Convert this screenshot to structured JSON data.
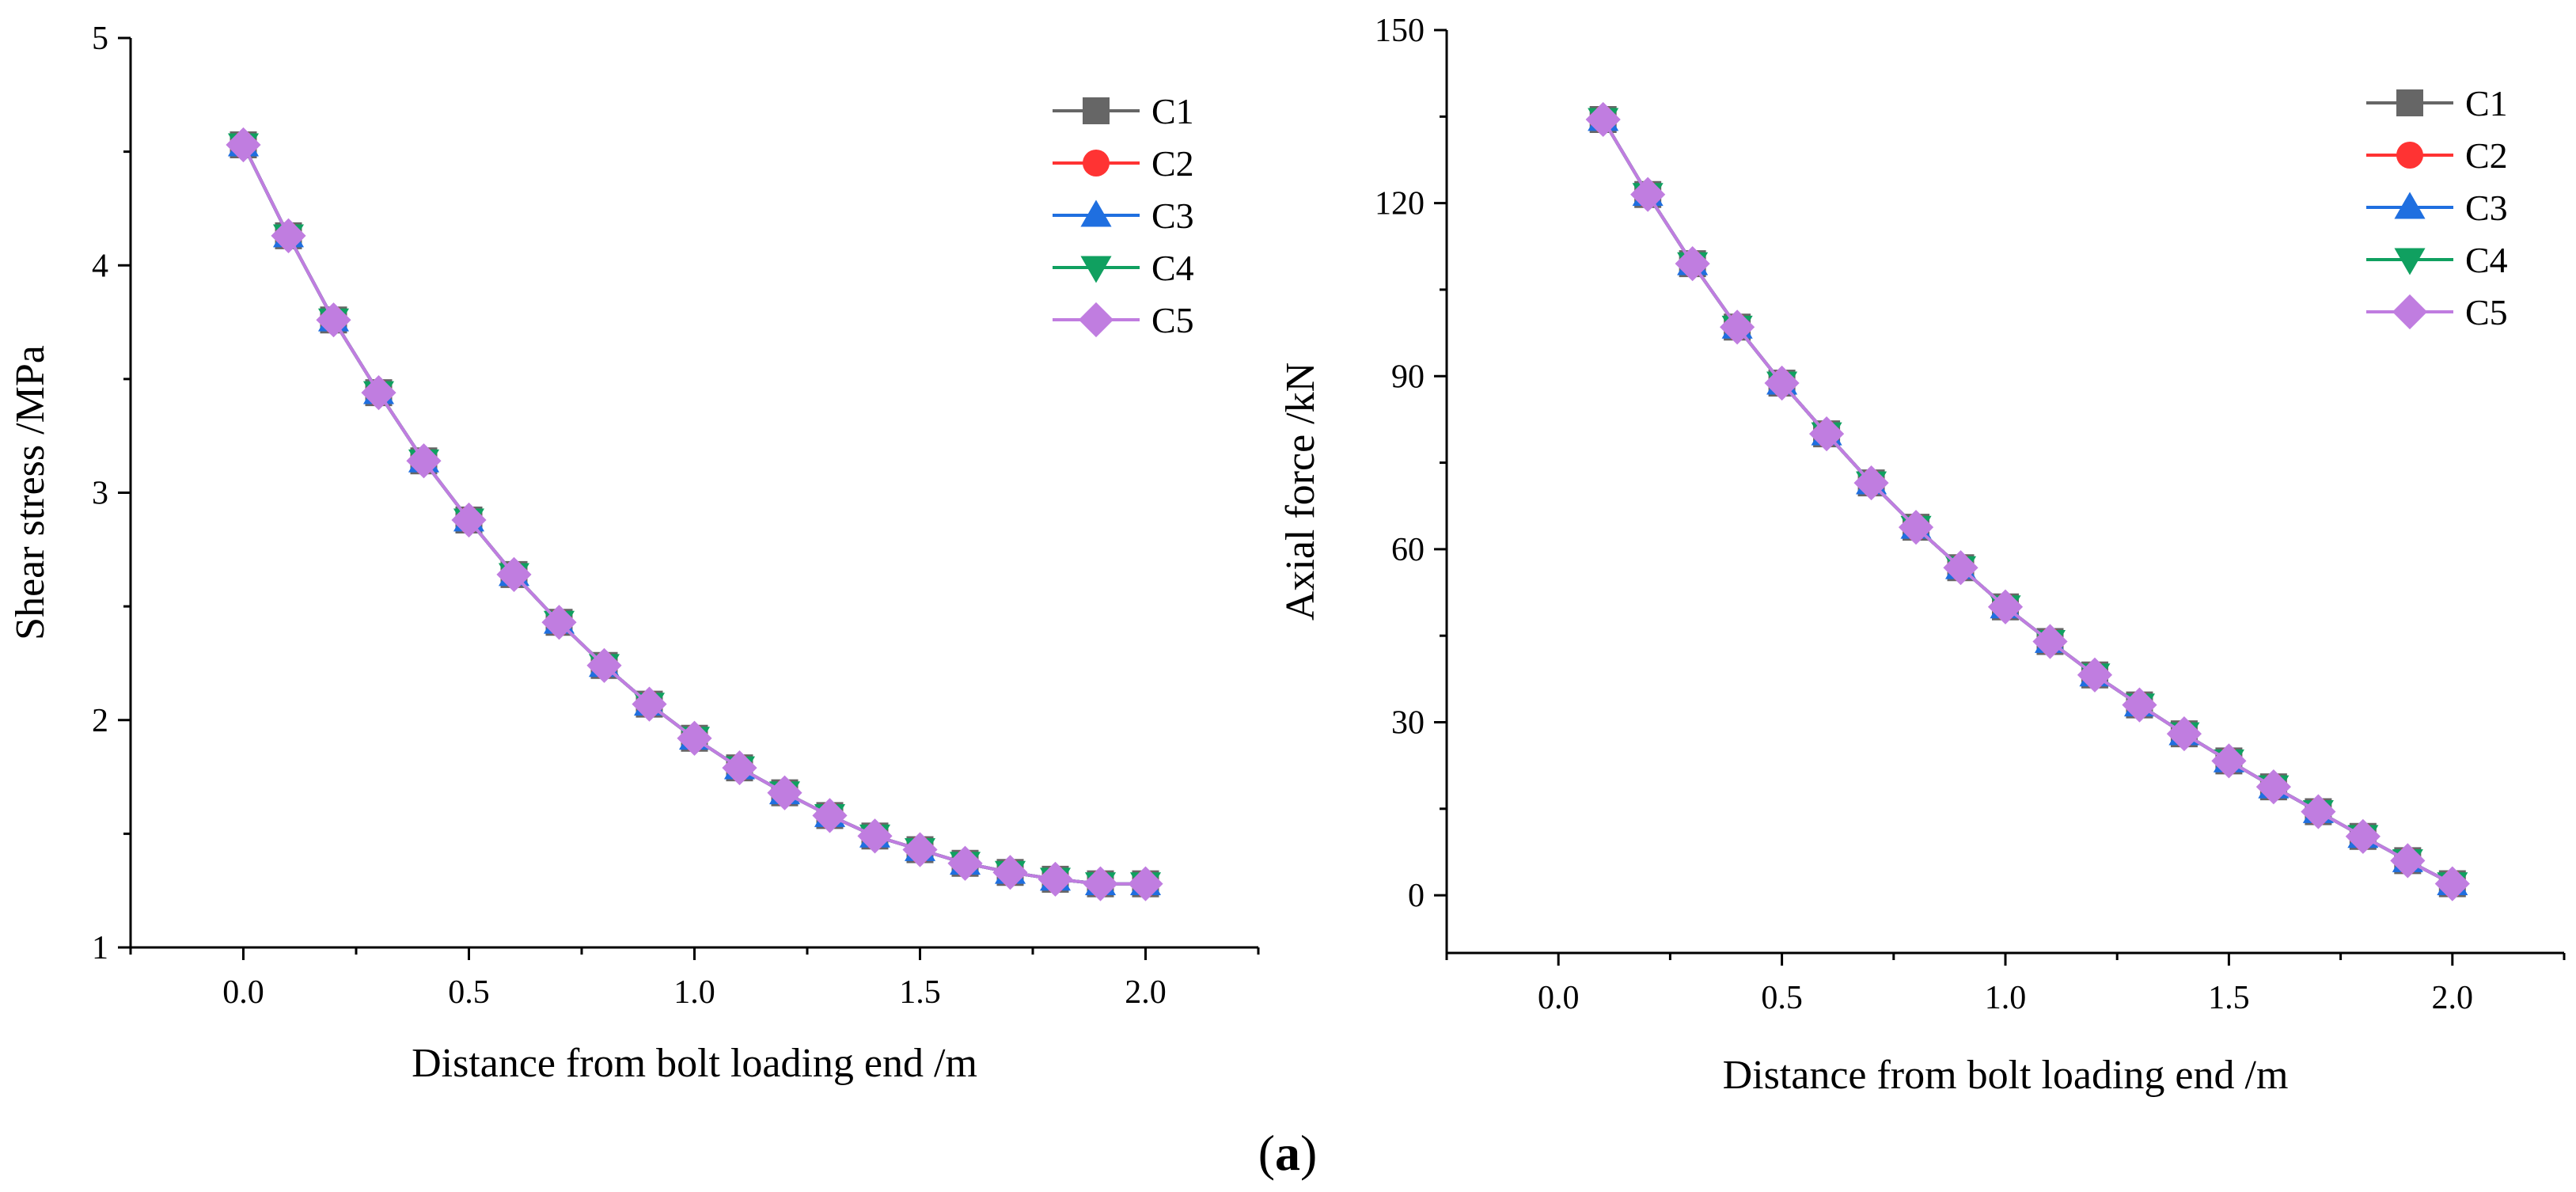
{
  "caption": {
    "letter": "a",
    "open": "(",
    "close": ")"
  },
  "series_colors": {
    "C1": "#666666",
    "C2": "#ff3333",
    "C3": "#1f6fe0",
    "C4": "#10a060",
    "C5": "#c07de0"
  },
  "series_markers": {
    "C1": "square",
    "C2": "circle",
    "C3": "triangle-up",
    "C4": "triangle-down",
    "C5": "diamond"
  },
  "chart_data": [
    {
      "type": "line",
      "title": "",
      "xlabel": "Distance from bolt loading end /m",
      "ylabel": "Shear stress /MPa",
      "xlim": [
        -0.25,
        2.25
      ],
      "ylim": [
        1,
        5
      ],
      "xticks": [
        0.0,
        0.5,
        1.0,
        1.5,
        2.0
      ],
      "xtick_labels": [
        "0.0",
        "0.5",
        "1.0",
        "1.5",
        "2.0"
      ],
      "yticks": [
        1,
        2,
        3,
        4,
        5
      ],
      "ytick_labels": [
        "1",
        "2",
        "3",
        "4",
        "5"
      ],
      "legend_position": "top-right",
      "grid": false,
      "x": [
        0.0,
        0.1,
        0.2,
        0.3,
        0.4,
        0.5,
        0.6,
        0.7,
        0.8,
        0.9,
        1.0,
        1.1,
        1.2,
        1.3,
        1.4,
        1.5,
        1.6,
        1.7,
        1.8,
        1.9,
        2.0
      ],
      "series": [
        {
          "name": "C1",
          "values": [
            4.53,
            4.13,
            3.76,
            3.44,
            3.14,
            2.88,
            2.64,
            2.43,
            2.24,
            2.07,
            1.92,
            1.79,
            1.68,
            1.58,
            1.49,
            1.43,
            1.37,
            1.33,
            1.3,
            1.28,
            1.28
          ]
        },
        {
          "name": "C2",
          "values": [
            4.53,
            4.13,
            3.76,
            3.44,
            3.14,
            2.88,
            2.64,
            2.43,
            2.24,
            2.07,
            1.92,
            1.79,
            1.68,
            1.58,
            1.49,
            1.43,
            1.37,
            1.33,
            1.3,
            1.28,
            1.28
          ]
        },
        {
          "name": "C3",
          "values": [
            4.53,
            4.13,
            3.76,
            3.44,
            3.14,
            2.88,
            2.64,
            2.43,
            2.24,
            2.07,
            1.92,
            1.79,
            1.68,
            1.58,
            1.49,
            1.43,
            1.37,
            1.33,
            1.3,
            1.28,
            1.28
          ]
        },
        {
          "name": "C4",
          "values": [
            4.53,
            4.13,
            3.76,
            3.44,
            3.14,
            2.88,
            2.64,
            2.43,
            2.24,
            2.07,
            1.92,
            1.79,
            1.68,
            1.58,
            1.49,
            1.43,
            1.37,
            1.33,
            1.3,
            1.28,
            1.28
          ]
        },
        {
          "name": "C5",
          "values": [
            4.53,
            4.13,
            3.76,
            3.44,
            3.14,
            2.88,
            2.64,
            2.43,
            2.24,
            2.07,
            1.92,
            1.79,
            1.68,
            1.58,
            1.49,
            1.43,
            1.37,
            1.33,
            1.3,
            1.28,
            1.28
          ]
        }
      ]
    },
    {
      "type": "line",
      "title": "",
      "xlabel": "Distance from bolt loading end /m",
      "ylabel": "Axial force /kN",
      "xlim": [
        -0.25,
        2.25
      ],
      "ylim": [
        -10,
        150
      ],
      "xticks": [
        0.0,
        0.5,
        1.0,
        1.5,
        2.0
      ],
      "xtick_labels": [
        "0.0",
        "0.5",
        "1.0",
        "1.5",
        "2.0"
      ],
      "yticks": [
        0,
        30,
        60,
        90,
        120,
        150
      ],
      "ytick_labels": [
        "0",
        "30",
        "60",
        "90",
        "120",
        "150"
      ],
      "legend_position": "top-right",
      "grid": false,
      "x": [
        0.1,
        0.2,
        0.3,
        0.4,
        0.5,
        0.6,
        0.7,
        0.8,
        0.9,
        1.0,
        1.1,
        1.2,
        1.3,
        1.4,
        1.5,
        1.6,
        1.7,
        1.8,
        1.9,
        2.0
      ],
      "series": [
        {
          "name": "C1",
          "values": [
            134.5,
            121.5,
            109.5,
            98.5,
            88.8,
            80.0,
            71.5,
            63.8,
            56.8,
            50.0,
            44.0,
            38.2,
            33.0,
            28.0,
            23.3,
            18.8,
            14.5,
            10.2,
            6.0,
            2.0
          ]
        },
        {
          "name": "C2",
          "values": [
            134.5,
            121.5,
            109.5,
            98.5,
            88.8,
            80.0,
            71.5,
            63.8,
            56.8,
            50.0,
            44.0,
            38.2,
            33.0,
            28.0,
            23.3,
            18.8,
            14.5,
            10.2,
            6.0,
            2.0
          ]
        },
        {
          "name": "C3",
          "values": [
            134.5,
            121.5,
            109.5,
            98.5,
            88.8,
            80.0,
            71.5,
            63.8,
            56.8,
            50.0,
            44.0,
            38.2,
            33.0,
            28.0,
            23.3,
            18.8,
            14.5,
            10.2,
            6.0,
            2.0
          ]
        },
        {
          "name": "C4",
          "values": [
            134.5,
            121.5,
            109.5,
            98.5,
            88.8,
            80.0,
            71.5,
            63.8,
            56.8,
            50.0,
            44.0,
            38.2,
            33.0,
            28.0,
            23.3,
            18.8,
            14.5,
            10.2,
            6.0,
            2.0
          ]
        },
        {
          "name": "C5",
          "values": [
            134.5,
            121.5,
            109.5,
            98.5,
            88.8,
            80.0,
            71.5,
            63.8,
            56.8,
            50.0,
            44.0,
            38.2,
            33.0,
            28.0,
            23.3,
            18.8,
            14.5,
            10.2,
            6.0,
            2.0
          ]
        }
      ]
    }
  ]
}
